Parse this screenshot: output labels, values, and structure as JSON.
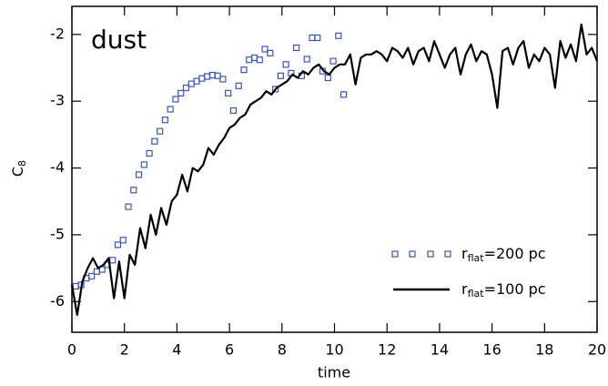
{
  "chart_data": {
    "type": "line",
    "annotation": "dust",
    "xlabel": "time",
    "ylabel": "C",
    "ylabel_sub": "8",
    "xlim": [
      0,
      20
    ],
    "ylim": [
      -6.46,
      -1.58
    ],
    "xticks": [
      0,
      2,
      4,
      6,
      8,
      10,
      12,
      14,
      16,
      18,
      20
    ],
    "yticks": [
      -2,
      -3,
      -4,
      -5,
      -6
    ],
    "legend": "lower right",
    "series": [
      {
        "type": "scatter",
        "name": "r",
        "name_sub": "flat",
        "name_tail": "=200 pc",
        "color": "#3355cc",
        "x": [
          0.15,
          0.35,
          0.55,
          0.75,
          0.95,
          1.15,
          1.35,
          1.55,
          1.75,
          1.95,
          2.15,
          2.35,
          2.55,
          2.75,
          2.95,
          3.15,
          3.35,
          3.55,
          3.75,
          3.95,
          4.15,
          4.35,
          4.55,
          4.75,
          4.95,
          5.15,
          5.35,
          5.55,
          5.75,
          5.95,
          6.15,
          6.35,
          6.55,
          6.75,
          6.95,
          7.15,
          7.35,
          7.55,
          7.75,
          7.95,
          8.15,
          8.35,
          8.55,
          8.75,
          8.95,
          9.15,
          9.35,
          9.55,
          9.75,
          9.95,
          10.15,
          10.35
        ],
        "values": [
          -5.77,
          -5.75,
          -5.65,
          -5.62,
          -5.55,
          -5.52,
          -5.45,
          -5.38,
          -5.15,
          -5.08,
          -4.58,
          -4.33,
          -4.1,
          -3.95,
          -3.78,
          -3.6,
          -3.45,
          -3.28,
          -3.12,
          -2.97,
          -2.88,
          -2.8,
          -2.74,
          -2.7,
          -2.66,
          -2.63,
          -2.61,
          -2.62,
          -2.67,
          -2.88,
          -3.14,
          -2.77,
          -2.53,
          -2.38,
          -2.35,
          -2.38,
          -2.22,
          -2.28,
          -2.82,
          -2.62,
          -2.45,
          -2.58,
          -2.2,
          -2.62,
          -2.37,
          -2.05,
          -2.05,
          -2.55,
          -2.65,
          -2.4,
          -2.02,
          -2.9
        ]
      },
      {
        "type": "line",
        "name": "r",
        "name_sub": "flat",
        "name_tail": "=100 pc",
        "color": "#000000",
        "x": [
          0,
          0.2,
          0.4,
          0.6,
          0.8,
          1,
          1.2,
          1.4,
          1.6,
          1.8,
          2,
          2.2,
          2.4,
          2.6,
          2.8,
          3,
          3.2,
          3.4,
          3.6,
          3.8,
          4,
          4.2,
          4.4,
          4.6,
          4.8,
          5,
          5.2,
          5.4,
          5.6,
          5.8,
          6,
          6.2,
          6.4,
          6.6,
          6.8,
          7,
          7.2,
          7.4,
          7.6,
          7.8,
          8,
          8.2,
          8.4,
          8.6,
          8.8,
          9,
          9.2,
          9.4,
          9.6,
          9.8,
          10,
          10.2,
          10.4,
          10.6,
          10.8,
          11,
          11.2,
          11.4,
          11.6,
          11.8,
          12,
          12.2,
          12.4,
          12.6,
          12.8,
          13,
          13.2,
          13.4,
          13.6,
          13.8,
          14,
          14.2,
          14.4,
          14.6,
          14.8,
          15,
          15.2,
          15.4,
          15.6,
          15.8,
          16,
          16.2,
          16.4,
          16.6,
          16.8,
          17,
          17.2,
          17.4,
          17.6,
          17.8,
          18,
          18.2,
          18.4,
          18.6,
          18.8,
          19,
          19.2,
          19.4,
          19.6,
          19.8,
          20
        ],
        "values": [
          -5.75,
          -6.2,
          -5.7,
          -5.5,
          -5.35,
          -5.5,
          -5.45,
          -5.35,
          -5.95,
          -5.4,
          -5.95,
          -5.3,
          -5.45,
          -4.9,
          -5.2,
          -4.7,
          -5.0,
          -4.6,
          -4.85,
          -4.5,
          -4.4,
          -4.1,
          -4.35,
          -4.0,
          -4.05,
          -3.95,
          -3.7,
          -3.8,
          -3.65,
          -3.55,
          -3.4,
          -3.35,
          -3.25,
          -3.2,
          -3.05,
          -3.0,
          -2.95,
          -2.85,
          -2.9,
          -2.8,
          -2.75,
          -2.7,
          -2.6,
          -2.65,
          -2.55,
          -2.6,
          -2.5,
          -2.45,
          -2.55,
          -2.6,
          -2.5,
          -2.45,
          -2.45,
          -2.3,
          -2.75,
          -2.35,
          -2.3,
          -2.3,
          -2.25,
          -2.3,
          -2.4,
          -2.2,
          -2.25,
          -2.35,
          -2.2,
          -2.45,
          -2.25,
          -2.2,
          -2.4,
          -2.1,
          -2.3,
          -2.5,
          -2.3,
          -2.2,
          -2.6,
          -2.3,
          -2.15,
          -2.4,
          -2.25,
          -2.3,
          -2.6,
          -3.1,
          -2.25,
          -2.2,
          -2.45,
          -2.2,
          -2.1,
          -2.5,
          -2.3,
          -2.4,
          -2.2,
          -2.3,
          -2.8,
          -2.1,
          -2.35,
          -2.15,
          -2.4,
          -1.85,
          -2.3,
          -2.2,
          -2.4
        ]
      }
    ]
  }
}
